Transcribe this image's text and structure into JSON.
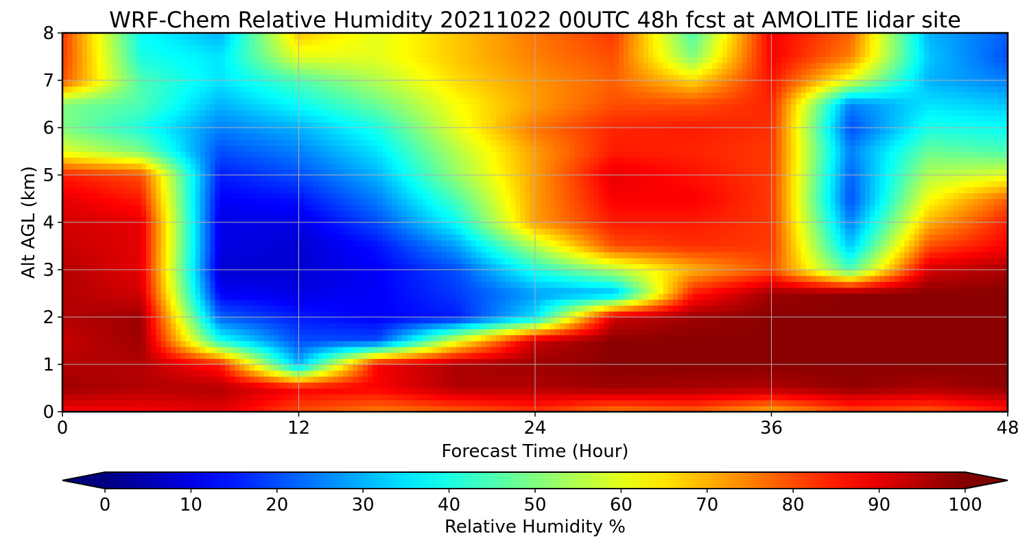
{
  "chart_data": {
    "type": "heatmap",
    "title": "WRF-Chem Relative Humidity 20211022 00UTC 48h fcst at AMOLITE lidar site",
    "xlabel": "Forecast Time (Hour)",
    "ylabel": "Alt AGL (km)",
    "xlim": [
      0,
      48
    ],
    "ylim": [
      0,
      8
    ],
    "x_ticks": [
      "0",
      "12",
      "24",
      "36",
      "48"
    ],
    "y_ticks": [
      "0",
      "1",
      "2",
      "3",
      "4",
      "5",
      "6",
      "7",
      "8"
    ],
    "grid": true,
    "colormap": "jet",
    "colorbar": {
      "label": "Relative Humidity %",
      "orientation": "horizontal",
      "range": [
        0,
        100
      ],
      "extend": "both",
      "ticks": [
        "0",
        "10",
        "20",
        "30",
        "40",
        "50",
        "60",
        "70",
        "80",
        "90",
        "100"
      ]
    },
    "x": [
      0,
      4,
      8,
      12,
      16,
      20,
      24,
      28,
      32,
      36,
      40,
      44,
      48
    ],
    "y": [
      0,
      0.5,
      1,
      1.5,
      2,
      2.5,
      3,
      3.5,
      4,
      4.5,
      5,
      5.5,
      6,
      6.5,
      7,
      7.5,
      8
    ],
    "z": [
      [
        88,
        88,
        90,
        80,
        75,
        78,
        82,
        75,
        78,
        70,
        80,
        78,
        85
      ],
      [
        97,
        95,
        95,
        88,
        88,
        95,
        95,
        97,
        96,
        95,
        98,
        96,
        98
      ],
      [
        95,
        95,
        85,
        30,
        88,
        96,
        97,
        99,
        99,
        99,
        99,
        99,
        99
      ],
      [
        93,
        97,
        40,
        20,
        20,
        60,
        93,
        99,
        99,
        99,
        99,
        99,
        99
      ],
      [
        95,
        97,
        22,
        15,
        12,
        15,
        35,
        92,
        97,
        99,
        99,
        99,
        99
      ],
      [
        95,
        92,
        12,
        10,
        12,
        18,
        28,
        30,
        85,
        97,
        99,
        99,
        99
      ],
      [
        95,
        90,
        8,
        8,
        12,
        20,
        40,
        55,
        70,
        80,
        45,
        92,
        96
      ],
      [
        93,
        90,
        10,
        8,
        14,
        28,
        55,
        80,
        83,
        82,
        32,
        80,
        88
      ],
      [
        92,
        90,
        10,
        10,
        20,
        38,
        72,
        85,
        85,
        82,
        25,
        70,
        85
      ],
      [
        90,
        85,
        12,
        14,
        25,
        45,
        72,
        88,
        88,
        82,
        20,
        62,
        78
      ],
      [
        85,
        80,
        15,
        20,
        30,
        52,
        72,
        90,
        86,
        82,
        22,
        55,
        60
      ],
      [
        60,
        50,
        20,
        25,
        35,
        55,
        72,
        85,
        84,
        82,
        25,
        48,
        45
      ],
      [
        50,
        40,
        25,
        30,
        40,
        60,
        76,
        84,
        85,
        83,
        20,
        40,
        38
      ],
      [
        50,
        45,
        30,
        38,
        48,
        62,
        72,
        80,
        80,
        84,
        25,
        35,
        32
      ],
      [
        80,
        45,
        35,
        45,
        55,
        66,
        73,
        78,
        66,
        86,
        60,
        30,
        25
      ],
      [
        82,
        40,
        35,
        60,
        60,
        68,
        75,
        80,
        50,
        88,
        75,
        32,
        20
      ],
      [
        82,
        38,
        30,
        68,
        60,
        68,
        76,
        82,
        45,
        88,
        78,
        30,
        22
      ]
    ]
  }
}
